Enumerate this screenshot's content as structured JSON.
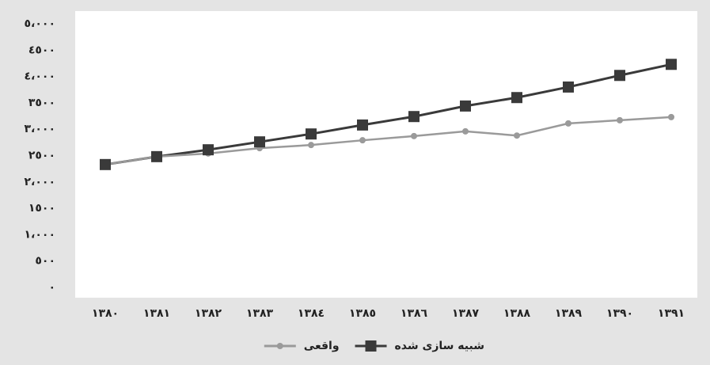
{
  "chart_data": {
    "type": "line",
    "categories": [
      "١٣٨٠",
      "١٣٨١",
      "١٣٨٢",
      "١٣٨٣",
      "١٣٨٤",
      "١٣٨٥",
      "١٣٨٦",
      "١٣٨٧",
      "١٣٨٨",
      "١٣٨٩",
      "١٣٩٠",
      "١٣٩١"
    ],
    "series": [
      {
        "name": "شبیه سازی شده",
        "color": "#3a3a3a",
        "marker": "square",
        "values": [
          2330,
          2480,
          2610,
          2760,
          2910,
          3080,
          3240,
          3440,
          3600,
          3800,
          4020,
          4230
        ]
      },
      {
        "name": "واقعی",
        "color": "#9a9a9a",
        "marker": "circle",
        "values": [
          2330,
          2480,
          2540,
          2640,
          2700,
          2790,
          2870,
          2960,
          2880,
          3110,
          3170,
          3230
        ]
      }
    ],
    "ylim": [
      0,
      5000
    ],
    "yticks": [
      {
        "value": 0,
        "label": "٠"
      },
      {
        "value": 500,
        "label": "٥٠٠"
      },
      {
        "value": 1000,
        "label": "١،٠٠٠"
      },
      {
        "value": 1500,
        "label": "١٥٠٠"
      },
      {
        "value": 2000,
        "label": "٢،٠٠٠"
      },
      {
        "value": 2500,
        "label": "٢٥٠٠"
      },
      {
        "value": 3000,
        "label": "٣،٠٠٠"
      },
      {
        "value": 3500,
        "label": "٣٥٠٠"
      },
      {
        "value": 4000,
        "label": "٤،٠٠٠"
      },
      {
        "value": 4500,
        "label": "٤٥٠٠"
      },
      {
        "value": 5000,
        "label": "٥،٠٠٠"
      }
    ],
    "grid": false,
    "legend": "bottom"
  }
}
